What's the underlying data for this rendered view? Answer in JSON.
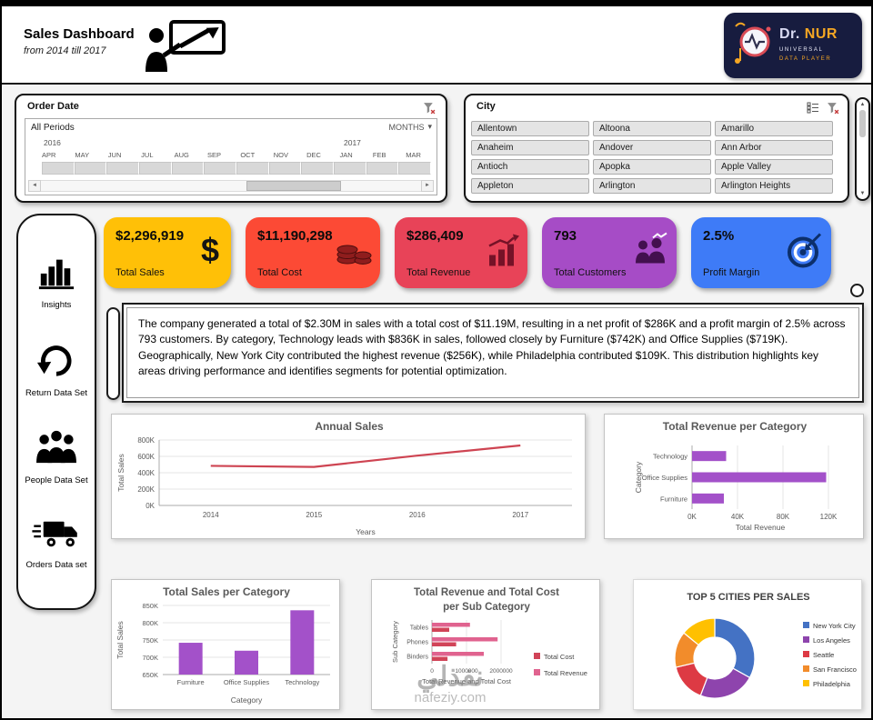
{
  "header": {
    "title": "Sales Dashboard",
    "subtitle": "from 2014 till 2017"
  },
  "brand": {
    "name_primary": "Dr.",
    "name_accent": "NUR",
    "tagline_line1": "UNIVERSAL",
    "tagline_line2": "DATA PLAYER",
    "accent_color": "#F5A623",
    "bg_color": "#171C3F"
  },
  "icons": {
    "dropdown_arrow": "▾",
    "left_arrow": "◄",
    "right_arrow": "►",
    "up_arrow": "▲",
    "down_arrow": "▼"
  },
  "order_date_slicer": {
    "title": "Order Date",
    "period_label": "All Periods",
    "granularity_label": "MONTHS",
    "years": [
      "2016",
      "2017"
    ],
    "months": [
      "APR",
      "MAY",
      "JUN",
      "JUL",
      "AUG",
      "SEP",
      "OCT",
      "NOV",
      "DEC",
      "JAN",
      "FEB",
      "MAR"
    ]
  },
  "city_slicer": {
    "title": "City",
    "cities": [
      "Allentown",
      "Altoona",
      "Amarillo",
      "Anaheim",
      "Andover",
      "Ann Arbor",
      "Antioch",
      "Apopka",
      "Apple Valley",
      "Appleton",
      "Arlington",
      "Arlington Heights"
    ]
  },
  "sidebar": {
    "items": [
      {
        "label": "Insights",
        "icon": "bar-chart-icon"
      },
      {
        "label": "Return Data Set",
        "icon": "return-arrow-icon"
      },
      {
        "label": "People Data Set",
        "icon": "people-icon"
      },
      {
        "label": "Orders Data set",
        "icon": "truck-icon"
      }
    ]
  },
  "kpis": [
    {
      "value": "$2,296,919",
      "label": "Total Sales",
      "icon": "dollar-icon",
      "color": "#FFC007"
    },
    {
      "value": "$11,190,298",
      "label": "Total Cost",
      "icon": "coins-icon",
      "color": "#FC4A35"
    },
    {
      "value": "$286,409",
      "label": "Total Revenue",
      "icon": "growth-chart-icon",
      "color": "#E84358"
    },
    {
      "value": "793",
      "label": "Total Customers",
      "icon": "customers-icon",
      "color": "#A64CC6"
    },
    {
      "value": "2.5%",
      "label": "Profit Margin",
      "icon": "target-icon",
      "color": "#3E7BF7"
    }
  ],
  "insight": {
    "text": "The company generated a total of $2.30M in sales with a total cost of $11.19M, resulting in a net profit of $286K and a profit margin of 2.5% across 793 customers. By category, Technology leads with $836K in sales, followed closely by Furniture ($742K) and Office Supplies ($719K). Geographically, New York City contributed the highest revenue ($256K), while Philadelphia contributed $109K. This distribution highlights key areas driving performance and identifies segments for potential optimization."
  },
  "watermark": {
    "arabic": "نفذلي",
    "domain": "nafeziy.com"
  },
  "chart_data": [
    {
      "id": "annual-sales",
      "type": "line",
      "title": "Annual Sales",
      "x": [
        "2014",
        "2015",
        "2016",
        "2017"
      ],
      "values": [
        484000,
        471000,
        609000,
        733000
      ],
      "xlabel": "Years",
      "ylabel": "Total Sales",
      "ylim": [
        0,
        800000
      ],
      "ytick_labels": [
        "0K",
        "200K",
        "400K",
        "600K",
        "800K"
      ],
      "grid": true,
      "line_color": "#CE4452"
    },
    {
      "id": "revenue-per-category",
      "type": "hbar",
      "title": "Total Revenue per Category",
      "categories": [
        "Technology",
        "Office Supplies",
        "Furniture"
      ],
      "values": [
        30000,
        118000,
        28000
      ],
      "xlabel": "Total Revenue",
      "ylabel": "Category",
      "xlim": [
        0,
        120000
      ],
      "xtick_labels": [
        "0K",
        "40K",
        "80K",
        "120K"
      ],
      "bar_color": "#A351C9"
    },
    {
      "id": "sales-per-category",
      "type": "bar",
      "title": "Total Sales per Category",
      "categories": [
        "Furniture",
        "Office Supplies",
        "Technology"
      ],
      "values": [
        742000,
        719000,
        836000
      ],
      "xlabel": "Category",
      "ylabel": "Total Sales",
      "ylim": [
        650000,
        850000
      ],
      "ytick_labels": [
        "650K",
        "700K",
        "750K",
        "800K",
        "850K"
      ],
      "bar_color": "#A351C9"
    },
    {
      "id": "subcategory-revenue-cost",
      "type": "grouped_hbar",
      "title": "Total Revenue and Total Cost per Sub Category",
      "title_lines": [
        "Total Revenue and Total Cost",
        "per Sub Category"
      ],
      "categories": [
        "Tables",
        "Phones",
        "Binders"
      ],
      "series": [
        {
          "name": "Total Cost",
          "color": "#D14458",
          "values": [
            500000,
            700000,
            450000
          ]
        },
        {
          "name": "Total Revenue",
          "color": "#E0638F",
          "values": [
            1100000,
            1900000,
            1500000
          ]
        }
      ],
      "xlabel": "Total Revenue and Total Cost",
      "ylabel": "Sub Category",
      "xlim": [
        0,
        2000000
      ],
      "xtick_labels": [
        "0",
        "1000000",
        "2000000"
      ],
      "legend_position": "right"
    },
    {
      "id": "top-cities",
      "type": "donut",
      "title": "TOP 5 CITIES PER SALES",
      "categories": [
        "New York City",
        "Los Angeles",
        "Seattle",
        "San Francisco",
        "Philadelphia"
      ],
      "values": [
        256000,
        176000,
        120000,
        113000,
        109000
      ],
      "colors": [
        "#4472C4",
        "#8E44AD",
        "#DD3A44",
        "#F28C2B",
        "#FFC000"
      ],
      "legend_position": "right"
    }
  ]
}
